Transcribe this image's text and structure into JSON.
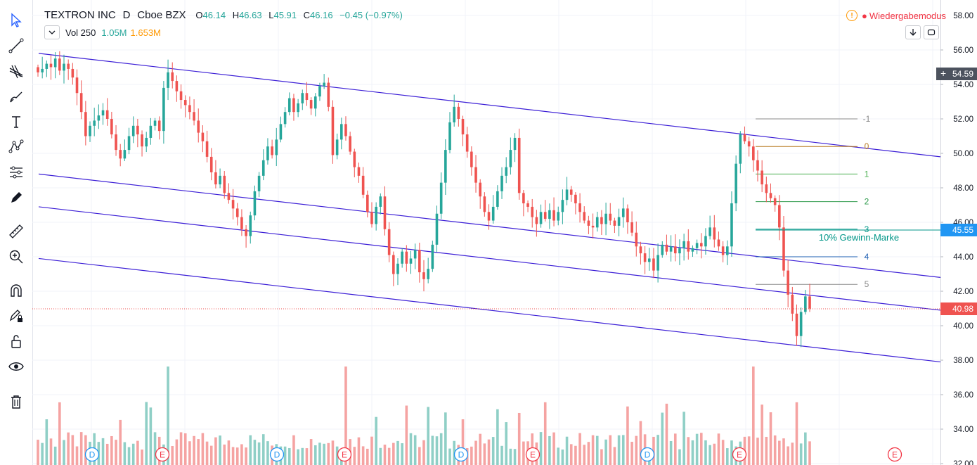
{
  "legend": {
    "symbol_name": "TEXTRON INC",
    "interval": "D",
    "exchange": "Cboe BZX",
    "open_label": "O",
    "open": "46.14",
    "high_label": "H",
    "high": "46.63",
    "low_label": "L",
    "low": "45.91",
    "close_label": "C",
    "close": "46.16",
    "change": "−0.45 (−0.97%)",
    "vol_label": "Vol 250",
    "vol_value": "1.05M",
    "vol_ma": "1.653M"
  },
  "replay": {
    "label": "Wiedergabemodus"
  },
  "price_axis": {
    "ticks": [
      "58.00",
      "56.00",
      "54.00",
      "52.00",
      "50.00",
      "48.00",
      "46.00",
      "44.00",
      "42.00",
      "40.00",
      "38.00",
      "36.00",
      "34.00",
      "32.00"
    ],
    "crosshair_value": "54.59",
    "level_value": "45.55",
    "last_value": "40.98"
  },
  "fib_levels": [
    "-1",
    "0",
    "1",
    "2",
    "3",
    "4",
    "5"
  ],
  "annotation": "10% Gewinn-Marke",
  "events": [
    "D",
    "E",
    "D",
    "E",
    "D",
    "E",
    "D",
    "E",
    "E"
  ],
  "colors": {
    "up": "#26a69a",
    "down": "#ef5350",
    "channel": "#3c1fd6",
    "up_vol": "#8fcfc6",
    "down_vol": "#f5a3a2",
    "level": "#2196f3"
  },
  "chart_data": {
    "type": "candlestick",
    "ylim": [
      32,
      58
    ],
    "channel": {
      "start_price": 55.8,
      "end_price": 49.8,
      "offsets": [
        0,
        -7.0,
        -8.9,
        -11.9
      ]
    },
    "fib": {
      "start_price": 52.0,
      "step": -1.6
    },
    "level_price": 45.55,
    "last_price": 40.98,
    "closes": [
      54.7,
      54.9,
      55.2,
      55.0,
      55.5,
      54.8,
      55.2,
      54.9,
      54.4,
      53.5,
      52.4,
      51.0,
      51.6,
      51.9,
      52.2,
      52.5,
      52.0,
      51.1,
      50.2,
      49.7,
      50.2,
      51.0,
      51.6,
      51.1,
      50.4,
      50.9,
      51.6,
      51.9,
      51.3,
      53.8,
      54.7,
      54.2,
      53.6,
      53.1,
      52.8,
      52.4,
      51.9,
      51.2,
      50.7,
      49.8,
      48.9,
      48.2,
      48.7,
      47.7,
      47.3,
      46.8,
      46.3,
      45.6,
      45.2,
      46.4,
      47.8,
      48.7,
      49.6,
      50.4,
      49.9,
      50.8,
      51.7,
      52.4,
      53.2,
      52.4,
      52.9,
      53.5,
      53.1,
      52.6,
      53.3,
      53.9,
      54.1,
      52.7,
      49.9,
      50.8,
      51.7,
      51.0,
      50.1,
      49.2,
      48.7,
      47.6,
      46.6,
      45.9,
      46.9,
      47.5,
      45.6,
      44.1,
      43.0,
      43.6,
      44.3,
      43.6,
      43.9,
      44.4,
      43.1,
      42.7,
      43.3,
      44.7,
      46.5,
      48.3,
      50.2,
      51.8,
      52.7,
      52.0,
      51.1,
      50.1,
      49.2,
      48.3,
      47.5,
      46.6,
      46.1,
      46.9,
      47.8,
      48.7,
      49.2,
      50.2,
      50.9,
      47.7,
      47.1,
      46.9,
      46.3,
      45.9,
      46.6,
      46.2,
      46.7,
      46.1,
      46.6,
      47.3,
      47.9,
      47.6,
      47.1,
      46.6,
      46.1,
      45.8,
      45.7,
      46.3,
      45.9,
      46.5,
      46.1,
      45.8,
      46.3,
      46.8,
      46.0,
      45.4,
      44.6,
      44.2,
      43.7,
      43.9,
      43.2,
      44.1,
      44.7,
      44.3,
      44.6,
      44.2,
      44.5,
      44.9,
      44.3,
      44.5,
      44.8,
      44.6,
      45.2,
      45.7,
      45.0,
      44.6,
      44.1,
      44.6,
      47.1,
      49.4,
      51.1,
      50.7,
      50.4,
      49.6,
      49.0,
      48.2,
      47.7,
      47.4,
      47.0,
      45.7,
      43.2,
      41.8,
      40.7,
      39.4,
      40.8,
      41.7,
      41.0
    ]
  }
}
